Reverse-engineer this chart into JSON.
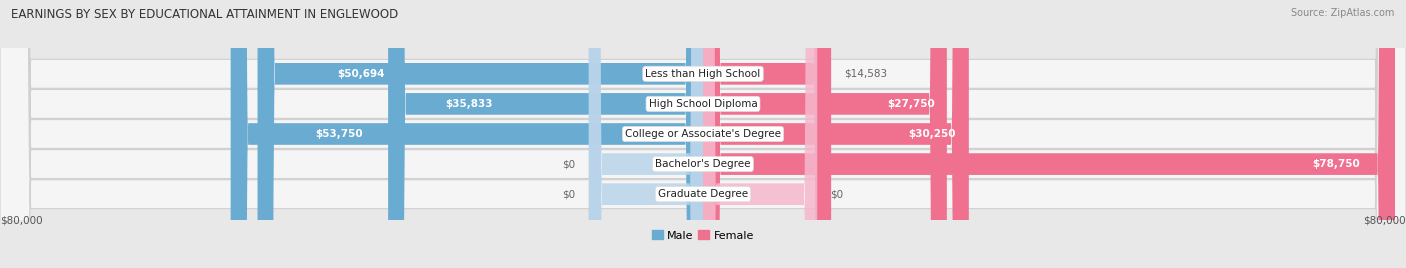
{
  "title": "EARNINGS BY SEX BY EDUCATIONAL ATTAINMENT IN ENGLEWOOD",
  "source": "Source: ZipAtlas.com",
  "categories": [
    "Less than High School",
    "High School Diploma",
    "College or Associate's Degree",
    "Bachelor's Degree",
    "Graduate Degree"
  ],
  "male_values": [
    50694,
    35833,
    53750,
    0,
    0
  ],
  "female_values": [
    14583,
    27750,
    30250,
    78750,
    0
  ],
  "male_color": "#6aabd2",
  "female_color": "#f07090",
  "male_zero_color": "#b8d4ea",
  "female_zero_color": "#f5b8cc",
  "background_color": "#e8e8e8",
  "row_color": "#f5f5f5",
  "row_border_color": "#d0d0d0",
  "label_white": "#ffffff",
  "label_dark": "#666666",
  "axis_label_left": "$80,000",
  "axis_label_right": "$80,000",
  "x_max": 80000,
  "zero_bar_width": 13000,
  "title_fontsize": 8.5,
  "source_fontsize": 7,
  "bar_label_fontsize": 7.5,
  "category_fontsize": 7.5,
  "axis_tick_fontsize": 7.5,
  "legend_fontsize": 8
}
